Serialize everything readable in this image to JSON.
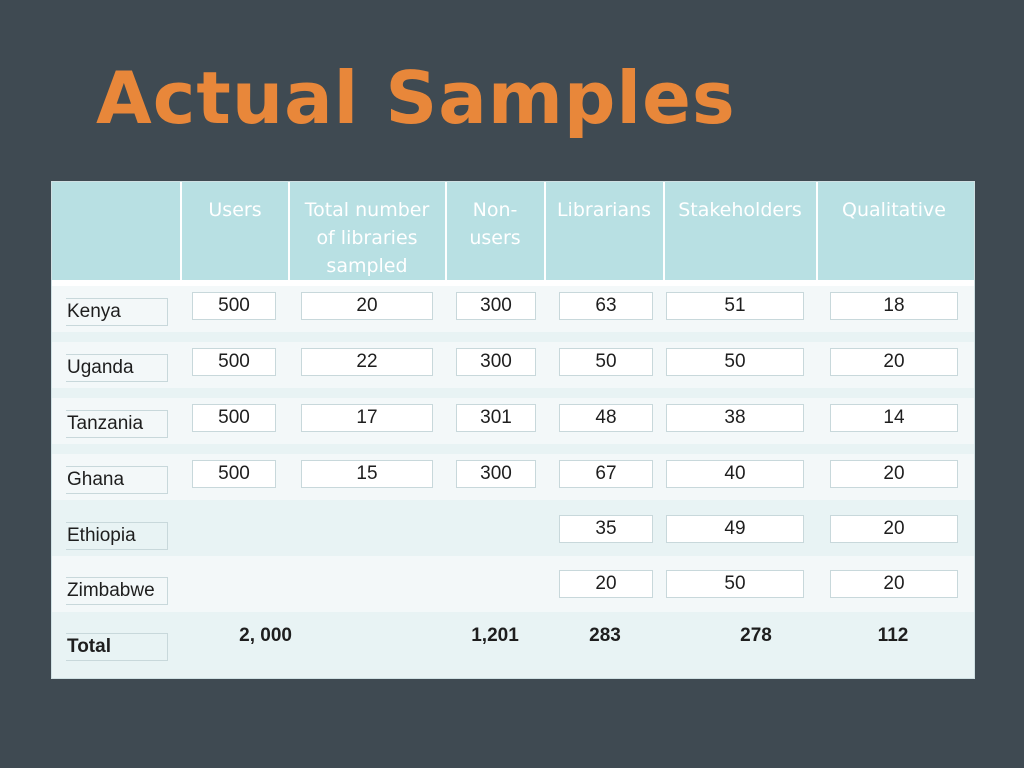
{
  "slide": {
    "title": "Actual Samples"
  },
  "table": {
    "columns": [
      "Users",
      "Total number of libraries sampled",
      "Non-users",
      "Librarians",
      "Stakeholders",
      "Qualitative"
    ],
    "column_lines": {
      "c1": [
        "Users"
      ],
      "c2": [
        "Total number",
        "of libraries",
        "sampled"
      ],
      "c3": [
        "Non-",
        "users"
      ],
      "c4": [
        "Librarians"
      ],
      "c5": [
        "Stakeholders"
      ],
      "c6": [
        "Qualitative"
      ]
    },
    "rows": [
      {
        "label": "Kenya",
        "values": [
          "500",
          "20",
          "300",
          "63",
          "51",
          "18"
        ]
      },
      {
        "label": "Uganda",
        "values": [
          "500",
          "22",
          "300",
          "50",
          "50",
          "20"
        ]
      },
      {
        "label": "Tanzania",
        "values": [
          "500",
          "17",
          "301",
          "48",
          "38",
          "14"
        ]
      },
      {
        "label": "Ghana",
        "values": [
          "500",
          "15",
          "300",
          "67",
          "40",
          "20"
        ]
      },
      {
        "label": "Ethiopia",
        "values": [
          "",
          "",
          "",
          "35",
          "49",
          "20"
        ]
      },
      {
        "label": "Zimbabwe",
        "values": [
          "",
          "",
          "",
          "20",
          "50",
          "20"
        ]
      }
    ],
    "total": {
      "label": "Total",
      "values": [
        "2, 000",
        "",
        "1,201",
        "283",
        "278",
        "112"
      ]
    }
  }
}
